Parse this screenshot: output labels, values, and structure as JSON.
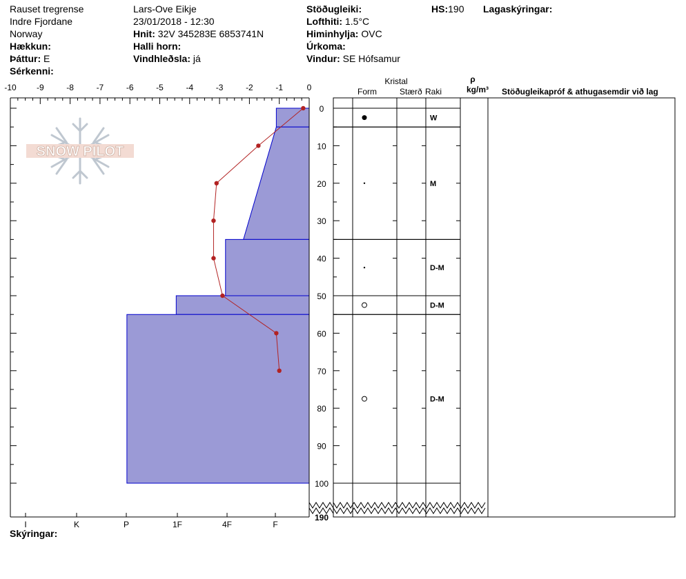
{
  "header": {
    "col1": {
      "location": "Rauset tregrense",
      "region": "Indre Fjordane",
      "country": "Norway",
      "elevation_label": "Hækkun:",
      "elevation_value": "",
      "aspect_label": "Þáttur:",
      "aspect_value": "E",
      "specifics_label": "Sérkenni:",
      "specifics_value": ""
    },
    "col2": {
      "observer": "Lars-Ove Eikje",
      "datetime": "23/01/2018 - 12:30",
      "coord_label": "Hnit:",
      "coord_value": "32V 345283E 6853741N",
      "slope_label": "Halli horn:",
      "slope_value": "",
      "wind_loading_label": "Vindhleðsla:",
      "wind_loading_value": "já"
    },
    "col3": {
      "stability_label": "Stöðugleiki:",
      "stability_value": "",
      "air_temp_label": "Lofthiti:",
      "air_temp_value": "1.5°C",
      "sky_label": "Himinhylja:",
      "sky_value": "OVC",
      "precip_label": "Úrkoma:",
      "precip_value": "",
      "wind_label": "Vindur:",
      "wind_value": "SE Hófsamur"
    },
    "hs_label": "HS:",
    "hs_value": "190",
    "layer_notes_label": "Lagaskýringar:"
  },
  "legend_label": "Skýringar:",
  "logo_text": "SNOW PILOT",
  "columns": {
    "crystal": "Kristal",
    "form": "Form",
    "size": "Stærð",
    "moisture": "Raki",
    "rho": "ρ",
    "density_unit": "kg/m³",
    "comments": "Stöðugleikapróf & athugasemdir við lag"
  },
  "colors": {
    "hardness_fill": "#9b9ad6",
    "hardness_stroke": "#0000cc",
    "temp_line": "#b22222"
  },
  "chart_data": {
    "type": "line",
    "temp_axis": {
      "ticks": [
        "-10",
        "-9",
        "-8",
        "-7",
        "-6",
        "-5",
        "-4",
        "-3",
        "-2",
        "-1",
        "0"
      ],
      "range": [
        -10,
        0
      ]
    },
    "hardness_axis": {
      "labels": [
        "I",
        "K",
        "P",
        "1F",
        "4F",
        "F"
      ]
    },
    "depth_axis": {
      "ticks": [
        "0",
        "10",
        "20",
        "30",
        "40",
        "50",
        "60",
        "70",
        "80",
        "90",
        "100"
      ],
      "range": [
        0,
        100
      ],
      "bottom_label": "190"
    },
    "temperature_profile": [
      {
        "depth": 0,
        "temp": -0.2
      },
      {
        "depth": 10,
        "temp": -1.7
      },
      {
        "depth": 20,
        "temp": -3.1
      },
      {
        "depth": 30,
        "temp": -3.2
      },
      {
        "depth": 40,
        "temp": -3.2
      },
      {
        "depth": 50,
        "temp": -2.9
      },
      {
        "depth": 60,
        "temp": -1.1
      },
      {
        "depth": 70,
        "temp": -1.0
      }
    ],
    "layers": [
      {
        "top": 0,
        "bottom": 5,
        "hardness_top": -1.1,
        "hardness_bottom": -1.1,
        "form": "filled-circle",
        "moisture": "W"
      },
      {
        "top": 5,
        "bottom": 35,
        "hardness_top": -1.1,
        "hardness_bottom": -2.2,
        "form": "small-dot",
        "moisture": "M"
      },
      {
        "top": 35,
        "bottom": 50,
        "hardness_top": -2.8,
        "hardness_bottom": -2.8,
        "form": "small-dot",
        "moisture": "D-M"
      },
      {
        "top": 50,
        "bottom": 55,
        "hardness_top": -4.45,
        "hardness_bottom": -4.45,
        "form": "open-circle",
        "moisture": "D-M"
      },
      {
        "top": 55,
        "bottom": 100,
        "hardness_top": -6.1,
        "hardness_bottom": -6.1,
        "form": "open-circle",
        "moisture": "D-M"
      }
    ]
  }
}
